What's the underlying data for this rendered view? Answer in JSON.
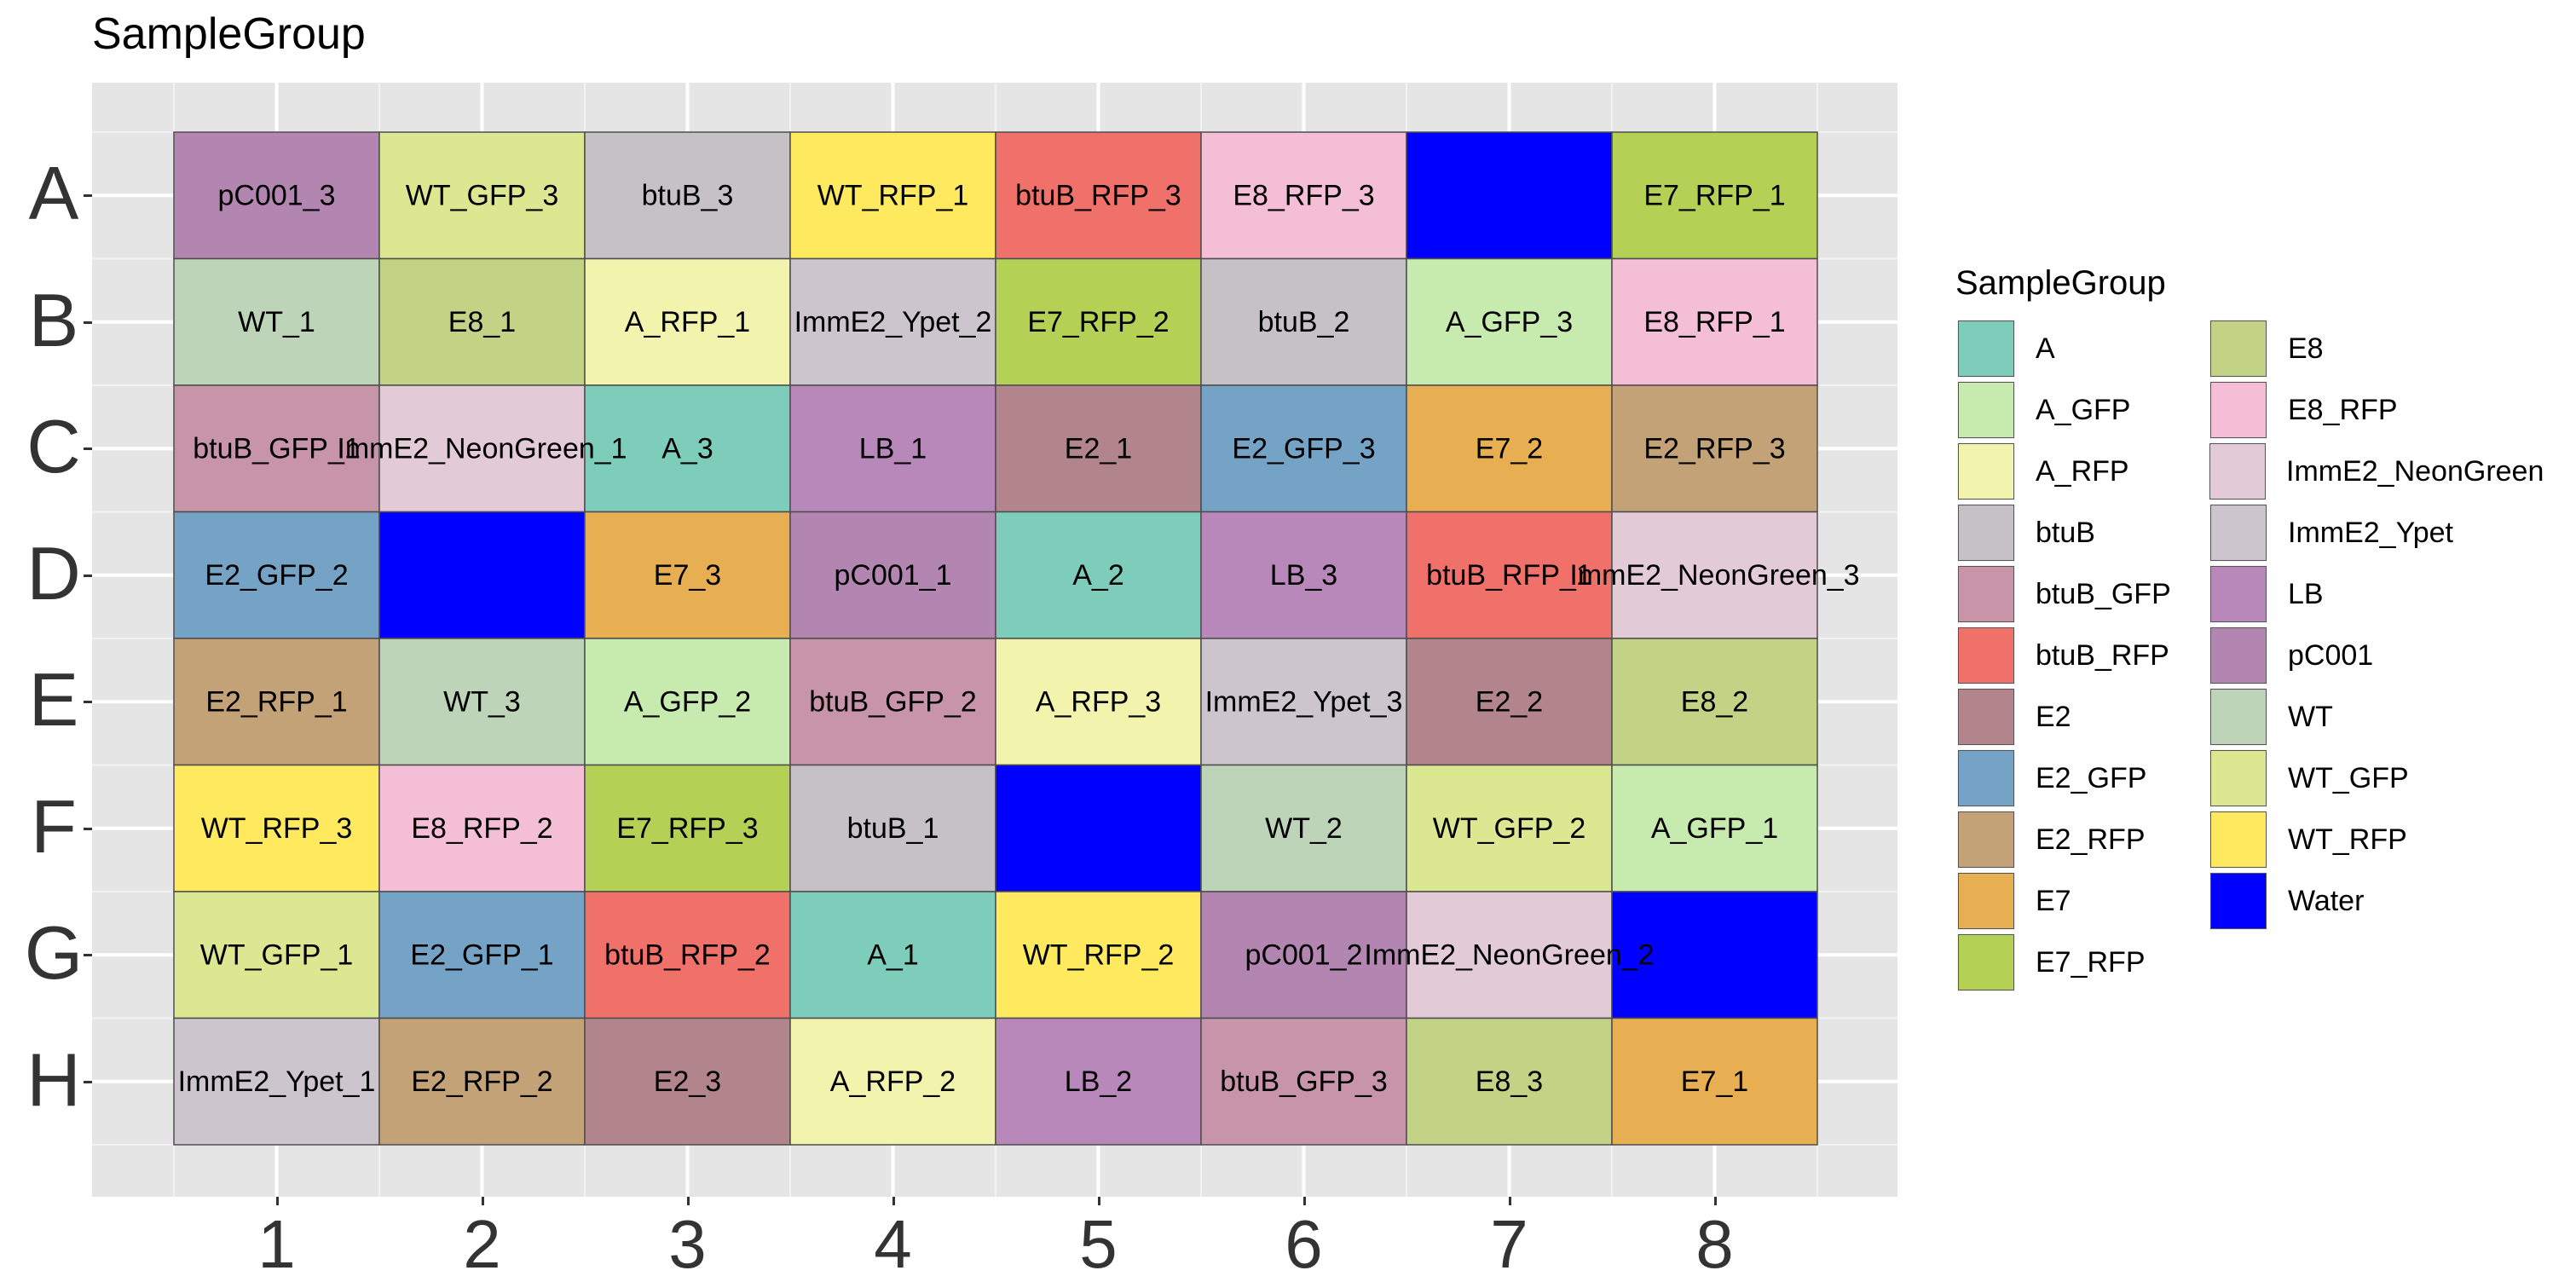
{
  "chart_data": {
    "type": "heatmap",
    "title": "SampleGroup",
    "rows": [
      "A",
      "B",
      "C",
      "D",
      "E",
      "F",
      "G",
      "H"
    ],
    "columns": [
      "1",
      "2",
      "3",
      "4",
      "5",
      "6",
      "7",
      "8"
    ],
    "cells": [
      {
        "row": "A",
        "col": "1",
        "label": "pC001_3",
        "group": "pC001"
      },
      {
        "row": "A",
        "col": "2",
        "label": "WT_GFP_3",
        "group": "WT_GFP"
      },
      {
        "row": "A",
        "col": "3",
        "label": "btuB_3",
        "group": "btuB"
      },
      {
        "row": "A",
        "col": "4",
        "label": "WT_RFP_1",
        "group": "WT_RFP"
      },
      {
        "row": "A",
        "col": "5",
        "label": "btuB_RFP_3",
        "group": "btuB_RFP"
      },
      {
        "row": "A",
        "col": "6",
        "label": "E8_RFP_3",
        "group": "E8_RFP"
      },
      {
        "row": "A",
        "col": "7",
        "label": "",
        "group": "Water"
      },
      {
        "row": "A",
        "col": "8",
        "label": "E7_RFP_1",
        "group": "E7_RFP"
      },
      {
        "row": "B",
        "col": "1",
        "label": "WT_1",
        "group": "WT"
      },
      {
        "row": "B",
        "col": "2",
        "label": "E8_1",
        "group": "E8"
      },
      {
        "row": "B",
        "col": "3",
        "label": "A_RFP_1",
        "group": "A_RFP"
      },
      {
        "row": "B",
        "col": "4",
        "label": "ImmE2_Ypet_2",
        "group": "ImmE2_Ypet"
      },
      {
        "row": "B",
        "col": "5",
        "label": "E7_RFP_2",
        "group": "E7_RFP"
      },
      {
        "row": "B",
        "col": "6",
        "label": "btuB_2",
        "group": "btuB"
      },
      {
        "row": "B",
        "col": "7",
        "label": "A_GFP_3",
        "group": "A_GFP"
      },
      {
        "row": "B",
        "col": "8",
        "label": "E8_RFP_1",
        "group": "E8_RFP"
      },
      {
        "row": "C",
        "col": "1",
        "label": "btuB_GFP_1",
        "group": "btuB_GFP"
      },
      {
        "row": "C",
        "col": "2",
        "label": "ImmE2_NeonGreen_1",
        "group": "ImmE2_NeonGreen"
      },
      {
        "row": "C",
        "col": "3",
        "label": "A_3",
        "group": "A"
      },
      {
        "row": "C",
        "col": "4",
        "label": "LB_1",
        "group": "LB"
      },
      {
        "row": "C",
        "col": "5",
        "label": "E2_1",
        "group": "E2"
      },
      {
        "row": "C",
        "col": "6",
        "label": "E2_GFP_3",
        "group": "E2_GFP"
      },
      {
        "row": "C",
        "col": "7",
        "label": "E7_2",
        "group": "E7"
      },
      {
        "row": "C",
        "col": "8",
        "label": "E2_RFP_3",
        "group": "E2_RFP"
      },
      {
        "row": "D",
        "col": "1",
        "label": "E2_GFP_2",
        "group": "E2_GFP"
      },
      {
        "row": "D",
        "col": "2",
        "label": "",
        "group": "Water"
      },
      {
        "row": "D",
        "col": "3",
        "label": "E7_3",
        "group": "E7"
      },
      {
        "row": "D",
        "col": "4",
        "label": "pC001_1",
        "group": "pC001"
      },
      {
        "row": "D",
        "col": "5",
        "label": "A_2",
        "group": "A"
      },
      {
        "row": "D",
        "col": "6",
        "label": "LB_3",
        "group": "LB"
      },
      {
        "row": "D",
        "col": "7",
        "label": "btuB_RFP_1",
        "group": "btuB_RFP"
      },
      {
        "row": "D",
        "col": "8",
        "label": "ImmE2_NeonGreen_3",
        "group": "ImmE2_NeonGreen"
      },
      {
        "row": "E",
        "col": "1",
        "label": "E2_RFP_1",
        "group": "E2_RFP"
      },
      {
        "row": "E",
        "col": "2",
        "label": "WT_3",
        "group": "WT"
      },
      {
        "row": "E",
        "col": "3",
        "label": "A_GFP_2",
        "group": "A_GFP"
      },
      {
        "row": "E",
        "col": "4",
        "label": "btuB_GFP_2",
        "group": "btuB_GFP"
      },
      {
        "row": "E",
        "col": "5",
        "label": "A_RFP_3",
        "group": "A_RFP"
      },
      {
        "row": "E",
        "col": "6",
        "label": "ImmE2_Ypet_3",
        "group": "ImmE2_Ypet"
      },
      {
        "row": "E",
        "col": "7",
        "label": "E2_2",
        "group": "E2"
      },
      {
        "row": "E",
        "col": "8",
        "label": "E8_2",
        "group": "E8"
      },
      {
        "row": "F",
        "col": "1",
        "label": "WT_RFP_3",
        "group": "WT_RFP"
      },
      {
        "row": "F",
        "col": "2",
        "label": "E8_RFP_2",
        "group": "E8_RFP"
      },
      {
        "row": "F",
        "col": "3",
        "label": "E7_RFP_3",
        "group": "E7_RFP"
      },
      {
        "row": "F",
        "col": "4",
        "label": "btuB_1",
        "group": "btuB"
      },
      {
        "row": "F",
        "col": "5",
        "label": "",
        "group": "Water"
      },
      {
        "row": "F",
        "col": "6",
        "label": "WT_2",
        "group": "WT"
      },
      {
        "row": "F",
        "col": "7",
        "label": "WT_GFP_2",
        "group": "WT_GFP"
      },
      {
        "row": "F",
        "col": "8",
        "label": "A_GFP_1",
        "group": "A_GFP"
      },
      {
        "row": "G",
        "col": "1",
        "label": "WT_GFP_1",
        "group": "WT_GFP"
      },
      {
        "row": "G",
        "col": "2",
        "label": "E2_GFP_1",
        "group": "E2_GFP"
      },
      {
        "row": "G",
        "col": "3",
        "label": "btuB_RFP_2",
        "group": "btuB_RFP"
      },
      {
        "row": "G",
        "col": "4",
        "label": "A_1",
        "group": "A"
      },
      {
        "row": "G",
        "col": "5",
        "label": "WT_RFP_2",
        "group": "WT_RFP"
      },
      {
        "row": "G",
        "col": "6",
        "label": "pC001_2",
        "group": "pC001"
      },
      {
        "row": "G",
        "col": "7",
        "label": "ImmE2_NeonGreen_2",
        "group": "ImmE2_NeonGreen"
      },
      {
        "row": "G",
        "col": "8",
        "label": "",
        "group": "Water"
      },
      {
        "row": "H",
        "col": "1",
        "label": "ImmE2_Ypet_1",
        "group": "ImmE2_Ypet"
      },
      {
        "row": "H",
        "col": "2",
        "label": "E2_RFP_2",
        "group": "E2_RFP"
      },
      {
        "row": "H",
        "col": "3",
        "label": "E2_3",
        "group": "E2"
      },
      {
        "row": "H",
        "col": "4",
        "label": "A_RFP_2",
        "group": "A_RFP"
      },
      {
        "row": "H",
        "col": "5",
        "label": "LB_2",
        "group": "LB"
      },
      {
        "row": "H",
        "col": "6",
        "label": "btuB_GFP_3",
        "group": "btuB_GFP"
      },
      {
        "row": "H",
        "col": "7",
        "label": "E8_3",
        "group": "E8"
      },
      {
        "row": "H",
        "col": "8",
        "label": "E7_1",
        "group": "E7"
      }
    ],
    "legend": {
      "title": "SampleGroup",
      "position": "right",
      "items": [
        {
          "name": "A",
          "color": "#7ECDBB"
        },
        {
          "name": "A_GFP",
          "color": "#C7EBAE"
        },
        {
          "name": "A_RFP",
          "color": "#F2F4AD"
        },
        {
          "name": "btuB",
          "color": "#C6C1C4"
        },
        {
          "name": "btuB_GFP",
          "color": "#C894A8"
        },
        {
          "name": "btuB_RFP",
          "color": "#F0716A"
        },
        {
          "name": "E2",
          "color": "#B2848C"
        },
        {
          "name": "E2_GFP",
          "color": "#74A3C5"
        },
        {
          "name": "E2_RFP",
          "color": "#C3A277"
        },
        {
          "name": "E7",
          "color": "#E8AF52"
        },
        {
          "name": "E7_RFP",
          "color": "#B4D156"
        },
        {
          "name": "E8",
          "color": "#C3D385"
        },
        {
          "name": "E8_RFP",
          "color": "#F4BED6"
        },
        {
          "name": "ImmE2_NeonGreen",
          "color": "#E3CAD7"
        },
        {
          "name": "ImmE2_Ypet",
          "color": "#CCC5CE"
        },
        {
          "name": "LB",
          "color": "#B888BB"
        },
        {
          "name": "pC001",
          "color": "#B286B0"
        },
        {
          "name": "WT",
          "color": "#BED4B8"
        },
        {
          "name": "WT_GFP",
          "color": "#DCE891"
        },
        {
          "name": "WT_RFP",
          "color": "#FEE95F"
        },
        {
          "name": "Water",
          "color": "#0000FF"
        }
      ]
    },
    "grid": true,
    "panel_background": "#E5E5E5"
  }
}
